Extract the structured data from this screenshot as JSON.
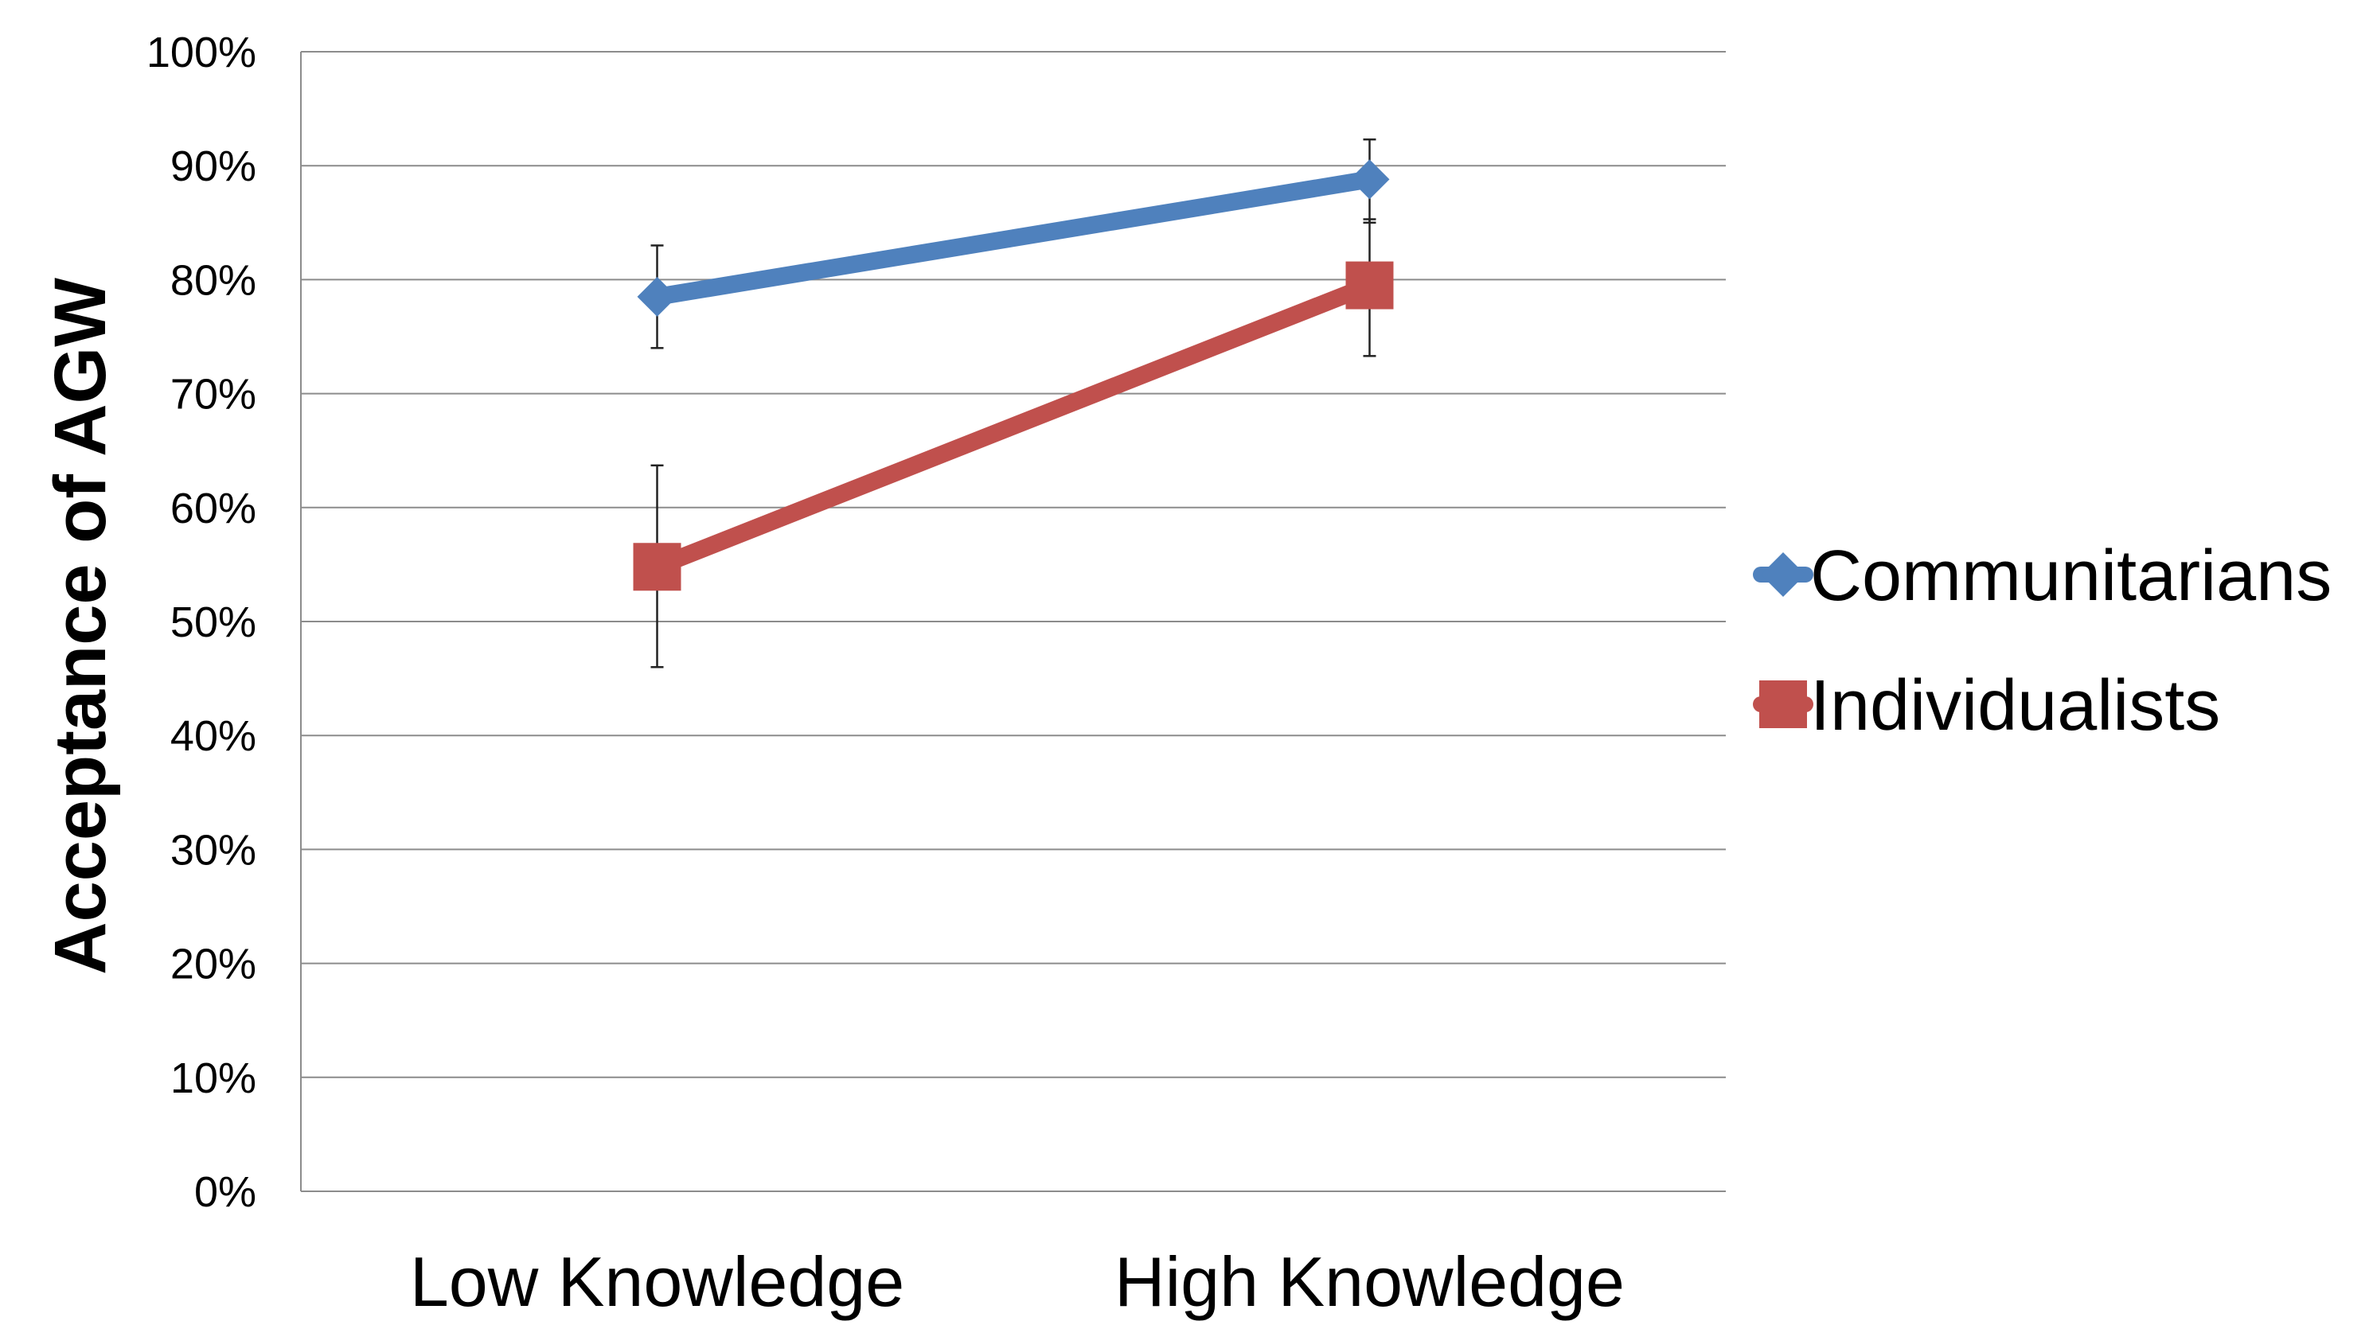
{
  "chart_data": {
    "type": "line",
    "categories": [
      "Low Knowledge",
      "High Knowledge"
    ],
    "ylabel": "Acceptance of AGW",
    "xlabel": "",
    "title": "",
    "ylim": [
      0,
      1
    ],
    "yticks": [
      "0%",
      "10%",
      "20%",
      "30%",
      "40%",
      "50%",
      "60%",
      "70%",
      "80%",
      "90%",
      "100%"
    ],
    "grid": true,
    "legend_position": "right",
    "series": [
      {
        "name": "Communitarians",
        "color": "#4F81BD",
        "marker": "diamond",
        "values": [
          0.785,
          0.888
        ],
        "error_low": [
          0.74,
          0.85
        ],
        "error_high": [
          0.83,
          0.923
        ]
      },
      {
        "name": "Individualists",
        "color": "#C0504D",
        "marker": "square",
        "values": [
          0.548,
          0.795
        ],
        "error_low": [
          0.46,
          0.733
        ],
        "error_high": [
          0.637,
          0.853
        ]
      }
    ]
  }
}
